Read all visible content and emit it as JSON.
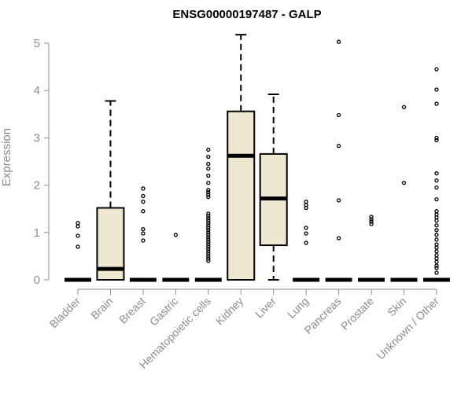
{
  "chart_data": {
    "type": "box",
    "title": "ENSG00000197487 - GALP",
    "xlabel": "",
    "ylabel": "Expression",
    "ylim": [
      0,
      5.2
    ],
    "yticks": [
      0,
      1,
      2,
      3,
      4,
      5
    ],
    "box_color": "#efe8d0",
    "categories": [
      "Bladder",
      "Brain",
      "Breast",
      "Gastric",
      "Hematopoietic cells",
      "Kidney",
      "Liver",
      "Lung",
      "Pancreas",
      "Prostate",
      "Skin",
      "Unknown / Other"
    ],
    "boxes": [
      {
        "q1": 0,
        "median": 0,
        "q3": 0,
        "whisker_low": 0,
        "whisker_high": 0,
        "outliers": [
          0.7,
          0.93,
          1.13,
          1.2
        ]
      },
      {
        "q1": 0,
        "median": 0.23,
        "q3": 1.52,
        "whisker_low": 0,
        "whisker_high": 3.78,
        "outliers": []
      },
      {
        "q1": 0,
        "median": 0,
        "q3": 0,
        "whisker_low": 0,
        "whisker_high": 0,
        "outliers": [
          0.83,
          0.98,
          1.07,
          1.45,
          1.65,
          1.77,
          1.93
        ]
      },
      {
        "q1": 0,
        "median": 0,
        "q3": 0,
        "whisker_low": 0,
        "whisker_high": 0,
        "outliers": [
          0.95
        ]
      },
      {
        "q1": 0,
        "median": 0,
        "q3": 0,
        "whisker_low": 0,
        "whisker_high": 0,
        "outliers": [
          0.4,
          0.45,
          0.5,
          0.55,
          0.6,
          0.65,
          0.7,
          0.75,
          0.8,
          0.85,
          0.9,
          0.95,
          1.0,
          1.05,
          1.1,
          1.15,
          1.2,
          1.25,
          1.3,
          1.35,
          1.4,
          1.75,
          1.8,
          1.85,
          1.9,
          2.05,
          2.2,
          2.35,
          2.45,
          2.6,
          2.75
        ]
      },
      {
        "q1": 0,
        "median": 2.62,
        "q3": 3.56,
        "whisker_low": 0,
        "whisker_high": 5.18,
        "outliers": []
      },
      {
        "q1": 0.73,
        "median": 1.72,
        "q3": 2.66,
        "whisker_low": 0,
        "whisker_high": 3.92,
        "outliers": []
      },
      {
        "q1": 0,
        "median": 0,
        "q3": 0,
        "whisker_low": 0,
        "whisker_high": 0,
        "outliers": [
          0.78,
          0.98,
          1.1,
          1.52,
          1.58,
          1.65
        ]
      },
      {
        "q1": 0,
        "median": 0,
        "q3": 0,
        "whisker_low": 0,
        "whisker_high": 0,
        "outliers": [
          0.88,
          1.68,
          2.83,
          3.48,
          5.03
        ]
      },
      {
        "q1": 0,
        "median": 0,
        "q3": 0,
        "whisker_low": 0,
        "whisker_high": 0,
        "outliers": [
          1.18,
          1.23,
          1.28,
          1.33
        ]
      },
      {
        "q1": 0,
        "median": 0,
        "q3": 0,
        "whisker_low": 0,
        "whisker_high": 0,
        "outliers": [
          2.05,
          3.65
        ]
      },
      {
        "q1": 0,
        "median": 0,
        "q3": 0,
        "whisker_low": 0,
        "whisker_high": 0,
        "outliers": [
          0.15,
          0.25,
          0.3,
          0.38,
          0.45,
          0.52,
          0.6,
          0.68,
          0.75,
          0.85,
          0.95,
          1.05,
          1.15,
          1.25,
          1.32,
          1.38,
          1.45,
          1.7,
          1.95,
          2.1,
          2.25,
          2.95,
          3.0,
          3.72,
          4.02,
          4.45
        ]
      }
    ]
  }
}
